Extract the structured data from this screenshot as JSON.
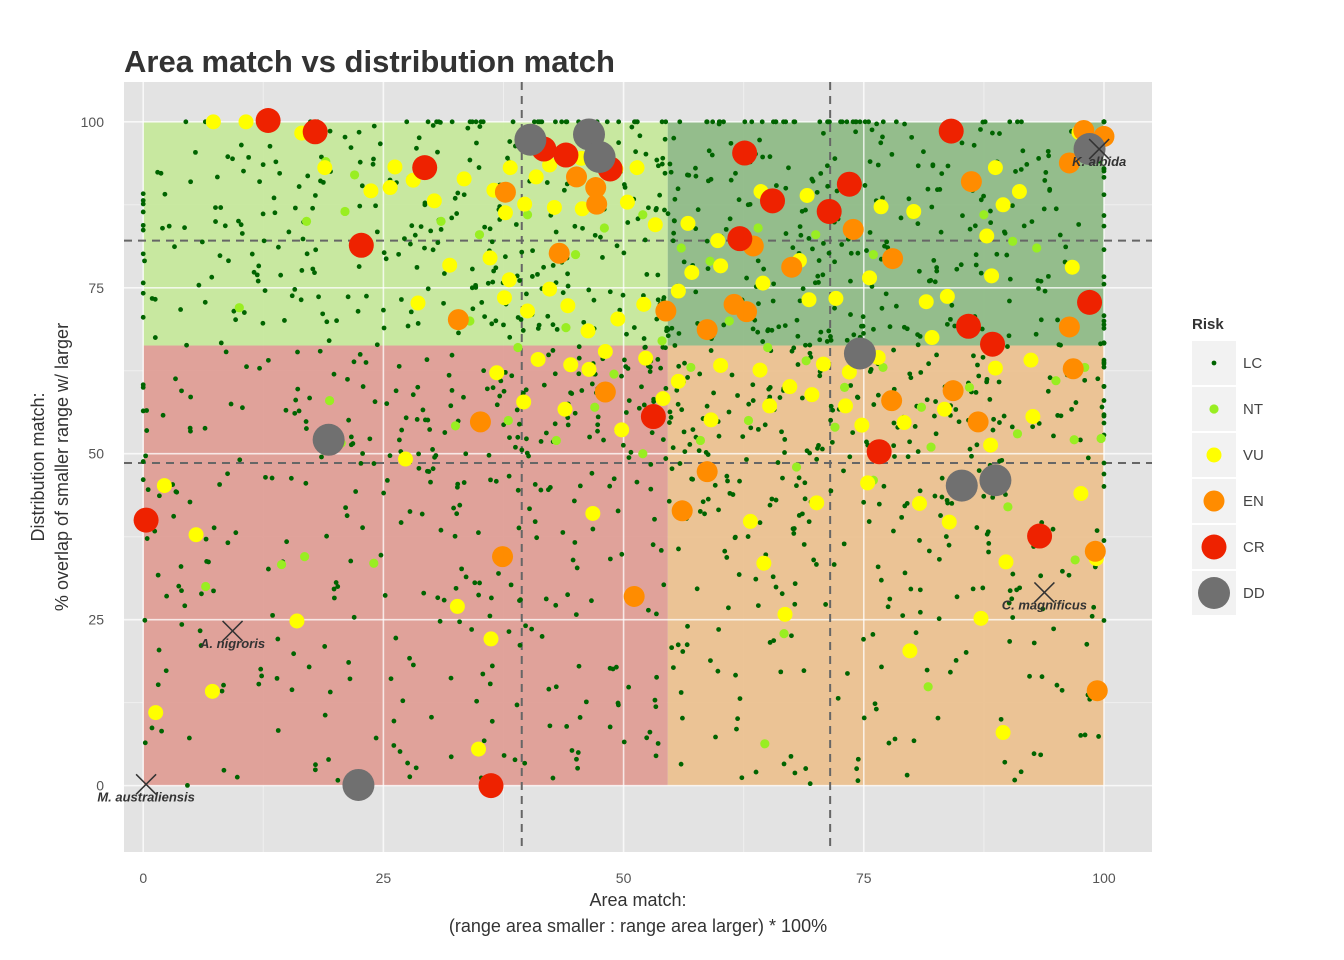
{
  "chart_data": {
    "type": "scatter",
    "title": "Area match vs distribution match",
    "xlabel": [
      "Area match:",
      "(range area smaller : range area larger) * 100%"
    ],
    "ylabel": [
      "Distribution match:",
      "% overlap of smaller range w/ larger"
    ],
    "xlim": [
      -2,
      105
    ],
    "ylim": [
      -10,
      106
    ],
    "x_ticks": [
      0,
      25,
      50,
      75,
      100
    ],
    "y_ticks": [
      0,
      25,
      50,
      75,
      100
    ],
    "grid": true,
    "legend": {
      "title": "Risk",
      "placement": "right",
      "entries": [
        {
          "key": "LC",
          "label": "LC",
          "color": "#006400"
        },
        {
          "key": "NT",
          "label": "NT",
          "color": "#99ee22"
        },
        {
          "key": "VU",
          "label": "VU",
          "color": "#ffff00"
        },
        {
          "key": "EN",
          "label": "EN",
          "color": "#ff8c00"
        },
        {
          "key": "CR",
          "label": "CR",
          "color": "#ee2200"
        },
        {
          "key": "DD",
          "label": "DD",
          "color": "#707070"
        }
      ]
    },
    "quadrants": [
      {
        "x": [
          0,
          54.6
        ],
        "y": [
          66.3,
          100
        ],
        "color": "#c6e89a"
      },
      {
        "x": [
          54.6,
          100
        ],
        "y": [
          66.3,
          100
        ],
        "color": "#8dba84"
      },
      {
        "x": [
          0,
          54.6
        ],
        "y": [
          0,
          66.3
        ],
        "color": "#e09c94"
      },
      {
        "x": [
          54.6,
          100
        ],
        "y": [
          0,
          66.3
        ],
        "color": "#ecc08e"
      }
    ],
    "reference_lines": {
      "vertical": [
        39.4,
        71.5
      ],
      "horizontal": [
        48.6,
        82.1
      ]
    },
    "annotations": [
      {
        "label": "M. australiensis",
        "x": 0.3,
        "y": 0.2
      },
      {
        "label": "A. nigroris",
        "x": 9.3,
        "y": 23.3
      },
      {
        "label": "C. magnificus",
        "x": 93.8,
        "y": 29.1
      },
      {
        "label": "K. albida",
        "x": 99.5,
        "y": 95.9
      }
    ],
    "series": [
      {
        "name": "DD",
        "points": [
          [
            46.4,
            98.1
          ],
          [
            40.3,
            97.3
          ],
          [
            47.5,
            94.7
          ],
          [
            19.3,
            52.1
          ],
          [
            22.4,
            0.1
          ],
          [
            74.6,
            65.1
          ],
          [
            85.2,
            45.2
          ],
          [
            88.7,
            46
          ],
          [
            98.5,
            95.9
          ]
        ]
      },
      {
        "name": "CR",
        "points": [
          [
            13,
            100.2
          ],
          [
            17.9,
            98.5
          ],
          [
            29.3,
            93.1
          ],
          [
            22.7,
            81.4
          ],
          [
            41.7,
            95.9
          ],
          [
            44,
            95
          ],
          [
            48.6,
            92.9
          ],
          [
            62.1,
            82.4
          ],
          [
            62.6,
            95.3
          ],
          [
            65.5,
            88.1
          ],
          [
            71.4,
            86.5
          ],
          [
            73.5,
            90.6
          ],
          [
            84.1,
            98.6
          ],
          [
            98.5,
            72.8
          ],
          [
            85.9,
            69.2
          ],
          [
            88.4,
            66.5
          ],
          [
            53.1,
            55.6
          ],
          [
            76.6,
            50.3
          ],
          [
            93.3,
            37.6
          ],
          [
            0.3,
            40
          ],
          [
            36.2,
            0
          ]
        ]
      },
      {
        "name": "EN",
        "points": [
          [
            40.6,
            97.9
          ],
          [
            37.7,
            89.4
          ],
          [
            45.1,
            91.7
          ],
          [
            47.2,
            87.6
          ],
          [
            43.3,
            80.2
          ],
          [
            63.5,
            81.3
          ],
          [
            67.5,
            78.1
          ],
          [
            73.9,
            83.8
          ],
          [
            78,
            79.4
          ],
          [
            86.2,
            91
          ],
          [
            96.4,
            93.8
          ],
          [
            97.9,
            98.7
          ],
          [
            100,
            97.8
          ],
          [
            61.5,
            72.5
          ],
          [
            62.8,
            71.4
          ],
          [
            58.7,
            68.7
          ],
          [
            54.4,
            71.5
          ],
          [
            32.8,
            70.2
          ],
          [
            96.4,
            69.1
          ],
          [
            96.8,
            62.8
          ],
          [
            48.1,
            59.3
          ],
          [
            35.1,
            54.8
          ],
          [
            77.9,
            58
          ],
          [
            84.3,
            59.5
          ],
          [
            86.9,
            54.8
          ],
          [
            58.7,
            47.3
          ],
          [
            56.1,
            41.4
          ],
          [
            37.4,
            34.5
          ],
          [
            51.1,
            28.5
          ],
          [
            99.1,
            35.3
          ],
          [
            99.3,
            14.3
          ],
          [
            47.1,
            90.1
          ]
        ]
      },
      {
        "name": "VU",
        "points": [
          [
            7.3,
            100
          ],
          [
            10.7,
            100
          ],
          [
            16.5,
            98.3
          ],
          [
            18.9,
            93.1
          ],
          [
            23.7,
            89.6
          ],
          [
            26.2,
            93.2
          ],
          [
            25.7,
            90.1
          ],
          [
            28.1,
            91.2
          ],
          [
            30.3,
            88.1
          ],
          [
            33.4,
            91.4
          ],
          [
            36.5,
            89.7
          ],
          [
            38.2,
            93.1
          ],
          [
            40.9,
            91.7
          ],
          [
            42.3,
            93.5
          ],
          [
            45.6,
            94.5
          ],
          [
            49.2,
            92.9
          ],
          [
            51.4,
            93.1
          ],
          [
            37.7,
            86.3
          ],
          [
            39.7,
            87.6
          ],
          [
            42.8,
            87.1
          ],
          [
            45.7,
            86.9
          ],
          [
            50.4,
            87.9
          ],
          [
            53.3,
            84.5
          ],
          [
            56.7,
            84.7
          ],
          [
            59.8,
            82.1
          ],
          [
            64.3,
            89.5
          ],
          [
            69.1,
            88.9
          ],
          [
            76.8,
            87.2
          ],
          [
            80.2,
            86.5
          ],
          [
            88.7,
            93.1
          ],
          [
            89.5,
            87.5
          ],
          [
            87.8,
            82.8
          ],
          [
            91.2,
            89.5
          ],
          [
            36.1,
            79.5
          ],
          [
            38.1,
            76.2
          ],
          [
            37.6,
            73.5
          ],
          [
            40,
            71.5
          ],
          [
            42.3,
            74.8
          ],
          [
            44.2,
            72.3
          ],
          [
            46.3,
            68.5
          ],
          [
            49.4,
            70.3
          ],
          [
            52.1,
            72.5
          ],
          [
            55.7,
            74.5
          ],
          [
            57.1,
            77.3
          ],
          [
            60.1,
            78.3
          ],
          [
            64.5,
            75.7
          ],
          [
            68.3,
            79.1
          ],
          [
            69.3,
            73.2
          ],
          [
            72.1,
            73.4
          ],
          [
            75.6,
            76.5
          ],
          [
            81.5,
            72.9
          ],
          [
            83.7,
            73.7
          ],
          [
            88.3,
            76.8
          ],
          [
            96.7,
            78.1
          ],
          [
            31.9,
            78.4
          ],
          [
            28.6,
            72.7
          ],
          [
            41.1,
            64.2
          ],
          [
            44.5,
            63.4
          ],
          [
            48.1,
            65.4
          ],
          [
            52.3,
            64.4
          ],
          [
            55.7,
            60.9
          ],
          [
            60.1,
            63.3
          ],
          [
            64.2,
            62.6
          ],
          [
            67.3,
            60.1
          ],
          [
            70.8,
            63.5
          ],
          [
            73.5,
            62.3
          ],
          [
            76.5,
            64.5
          ],
          [
            82.1,
            67.5
          ],
          [
            88.7,
            62.9
          ],
          [
            92.4,
            64.1
          ],
          [
            36.8,
            62.2
          ],
          [
            39.6,
            57.8
          ],
          [
            43.9,
            56.7
          ],
          [
            46.4,
            62.7
          ],
          [
            49.8,
            53.6
          ],
          [
            54.1,
            58.3
          ],
          [
            59.1,
            55.1
          ],
          [
            65.2,
            57.2
          ],
          [
            69.6,
            58.9
          ],
          [
            73.1,
            57.2
          ],
          [
            74.8,
            54.3
          ],
          [
            79.2,
            54.7
          ],
          [
            83.4,
            56.7
          ],
          [
            88.2,
            51.3
          ],
          [
            92.6,
            55.6
          ],
          [
            27.3,
            49.2
          ],
          [
            46.8,
            41
          ],
          [
            63.2,
            39.8
          ],
          [
            70.1,
            42.6
          ],
          [
            75.4,
            45.6
          ],
          [
            80.8,
            42.5
          ],
          [
            83.9,
            39.7
          ],
          [
            89.8,
            33.7
          ],
          [
            97.6,
            44
          ],
          [
            99.2,
            34.2
          ],
          [
            2.2,
            45.2
          ],
          [
            5.5,
            37.8
          ],
          [
            16,
            24.8
          ],
          [
            32.7,
            27
          ],
          [
            36.2,
            22.1
          ],
          [
            34.9,
            5.5
          ],
          [
            1.3,
            11
          ],
          [
            7.2,
            14.2
          ],
          [
            64.6,
            33.5
          ],
          [
            66.8,
            25.8
          ],
          [
            79.8,
            20.3
          ],
          [
            87.2,
            25.2
          ],
          [
            89.5,
            8
          ],
          [
            97.4,
            98.4
          ]
        ]
      },
      {
        "name": "NT",
        "points": [
          [
            10,
            72
          ],
          [
            19.4,
            58
          ],
          [
            14.4,
            33.3
          ],
          [
            16.8,
            34.5
          ],
          [
            24,
            33.5
          ],
          [
            6.5,
            30
          ],
          [
            17,
            85
          ],
          [
            21,
            86.5
          ],
          [
            19,
            94
          ],
          [
            22,
            92
          ],
          [
            26,
            90
          ],
          [
            31,
            85
          ],
          [
            35,
            83
          ],
          [
            40,
            86
          ],
          [
            45,
            80
          ],
          [
            48,
            84
          ],
          [
            52,
            86
          ],
          [
            56,
            81
          ],
          [
            59,
            79
          ],
          [
            64,
            84
          ],
          [
            70,
            83
          ],
          [
            76,
            80
          ],
          [
            80,
            86
          ],
          [
            84,
            99.5
          ],
          [
            87.5,
            86
          ],
          [
            90.5,
            82
          ],
          [
            93,
            81
          ],
          [
            97.5,
            96
          ],
          [
            34,
            70
          ],
          [
            39,
            66
          ],
          [
            44,
            69
          ],
          [
            49,
            62
          ],
          [
            54,
            67
          ],
          [
            57,
            63
          ],
          [
            61,
            70
          ],
          [
            65,
            66
          ],
          [
            69,
            64
          ],
          [
            73,
            60
          ],
          [
            77,
            63
          ],
          [
            81,
            57
          ],
          [
            86,
            60
          ],
          [
            91,
            53
          ],
          [
            95,
            61
          ],
          [
            98,
            63
          ],
          [
            38,
            55
          ],
          [
            43,
            52
          ],
          [
            47,
            57
          ],
          [
            52,
            50
          ],
          [
            58,
            52
          ],
          [
            63,
            55
          ],
          [
            68,
            48
          ],
          [
            72,
            54
          ],
          [
            76,
            46
          ],
          [
            82,
            51
          ],
          [
            86,
            44
          ],
          [
            90,
            42
          ],
          [
            94,
            38
          ],
          [
            97,
            34
          ],
          [
            66.7,
            22.9
          ],
          [
            64.7,
            6.3
          ],
          [
            81.7,
            14.9
          ],
          [
            96.9,
            52.1
          ],
          [
            99.7,
            52.3
          ],
          [
            20.6,
            51.6
          ],
          [
            32.5,
            54.2
          ]
        ]
      }
    ]
  }
}
